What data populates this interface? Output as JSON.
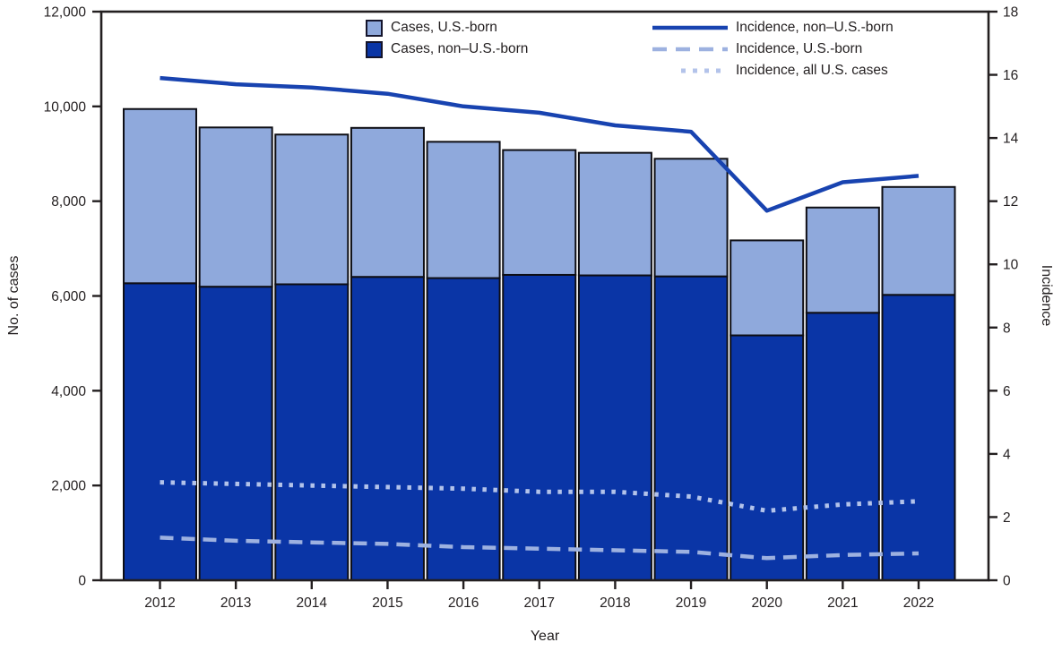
{
  "figure": {
    "background": "#ffffff",
    "description": "Stacked bar and line combination chart of tuberculosis case counts and incidence, by U.S.-born status, 2012-2022"
  },
  "chart_data": {
    "type": "bar",
    "subtype": "stacked-bars-with-lines",
    "categories": [
      "2012",
      "2013",
      "2014",
      "2015",
      "2016",
      "2017",
      "2018",
      "2019",
      "2020",
      "2021",
      "2022"
    ],
    "bar_series": [
      {
        "name": "Cases, non–U.S.-born",
        "axis": "left",
        "color": "#0a35a6",
        "values": [
          6268,
          6195,
          6246,
          6402,
          6377,
          6445,
          6434,
          6413,
          5168,
          5645,
          6023
        ]
      },
      {
        "name": "Cases, U.S.-born",
        "axis": "left",
        "color": "#8fa9dc",
        "values": [
          3677,
          3361,
          3160,
          3145,
          2876,
          2634,
          2587,
          2482,
          2005,
          2221,
          2277
        ]
      }
    ],
    "bar_totals": [
      9945,
      9556,
      9406,
      9547,
      9253,
      9079,
      9021,
      8895,
      7173,
      7866,
      8300
    ],
    "line_series": [
      {
        "name": "Incidence, non–U.S.-born",
        "axis": "right",
        "style": "solid",
        "color": "#1843b0",
        "values": [
          15.9,
          15.7,
          15.6,
          15.4,
          15.0,
          14.8,
          14.4,
          14.2,
          11.7,
          12.6,
          12.8
        ]
      },
      {
        "name": "Incidence, U.S.-born",
        "axis": "right",
        "style": "dashed",
        "color": "#9db1e0",
        "values": [
          1.35,
          1.25,
          1.2,
          1.15,
          1.05,
          1.0,
          0.95,
          0.9,
          0.7,
          0.8,
          0.85
        ]
      },
      {
        "name": "Incidence, all U.S. cases",
        "axis": "right",
        "style": "dotted",
        "color": "#b3c3ea",
        "values": [
          3.1,
          3.05,
          3.0,
          2.95,
          2.9,
          2.8,
          2.8,
          2.65,
          2.2,
          2.4,
          2.5
        ]
      }
    ],
    "left_axis": {
      "label": "No. of cases",
      "min": 0,
      "max": 12000,
      "tick_step": 2000,
      "tick_labels": [
        "0",
        "2,000",
        "4,000",
        "6,000",
        "8,000",
        "10,000",
        "12,000"
      ]
    },
    "right_axis": {
      "label": "Incidence",
      "min": 0,
      "max": 18,
      "tick_step": 2,
      "tick_labels": [
        "0",
        "2",
        "4",
        "6",
        "8",
        "10",
        "12",
        "14",
        "16",
        "18"
      ]
    },
    "x_axis": {
      "label": "Year"
    },
    "legend": {
      "position": "top-center-inside"
    },
    "grid": false,
    "colors": {
      "bar_outline": "#0e0e14",
      "axis": "#231f20",
      "plot_background": "#ffffff"
    }
  }
}
